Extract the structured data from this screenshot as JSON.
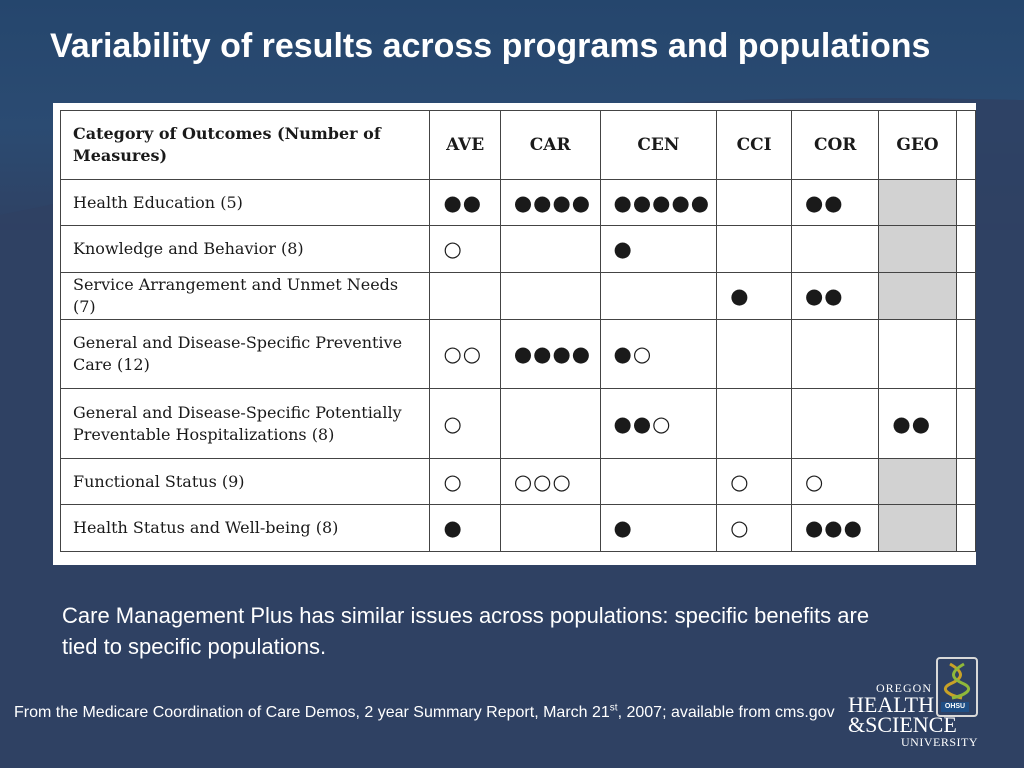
{
  "slide": {
    "title": "Variability of results across programs and populations",
    "body": "Care Management Plus has similar issues across populations: specific benefits are tied to specific populations.",
    "source_pre": "From the Medicare Coordination of Care Demos, 2 year Summary Report, March 21",
    "source_sup": "st",
    "source_post": ", 2007; available from cms.gov"
  },
  "table": {
    "category_header": "Category of Outcomes (Number of Measures)",
    "columns": [
      "AVE",
      "CAR",
      "CEN",
      "CCI",
      "COR",
      "GEO"
    ],
    "rows": [
      {
        "category": "Health Education (5)",
        "cells": [
          "●●",
          "●●●●",
          "●●●●●",
          "",
          "●●",
          ""
        ]
      },
      {
        "category": "Knowledge and Behavior (8)",
        "cells": [
          "○",
          "",
          "●",
          "",
          "",
          ""
        ]
      },
      {
        "category": "Service Arrangement and Unmet Needs (7)",
        "cells": [
          "",
          "",
          "",
          "●",
          "●●",
          ""
        ]
      },
      {
        "category": "General and Disease-Specific Preventive Care (12)",
        "cells": [
          "○○",
          "●●●●",
          "●○",
          "",
          "",
          ""
        ]
      },
      {
        "category": "General and Disease-Specific Potentially Preventable Hospitalizations (8)",
        "cells": [
          "○",
          "",
          "●●○",
          "",
          "",
          "●●"
        ]
      },
      {
        "category": "Functional Status (9)",
        "cells": [
          "○",
          "○○○",
          "",
          "○",
          "○",
          ""
        ]
      },
      {
        "category": "Health Status and Well-being (8)",
        "cells": [
          "●",
          "",
          "●",
          "○",
          "●●●",
          ""
        ]
      }
    ]
  },
  "logo": {
    "line1": "OREGON",
    "line2": "HEALTH",
    "line3": "&SCIENCE",
    "line4": "UNIVERSITY",
    "tag": "OHSU"
  },
  "colors": {
    "background": "#2f4163",
    "header_band": "#25466d",
    "shaded_cell": "#d2d2d2",
    "text": "#ffffff"
  }
}
